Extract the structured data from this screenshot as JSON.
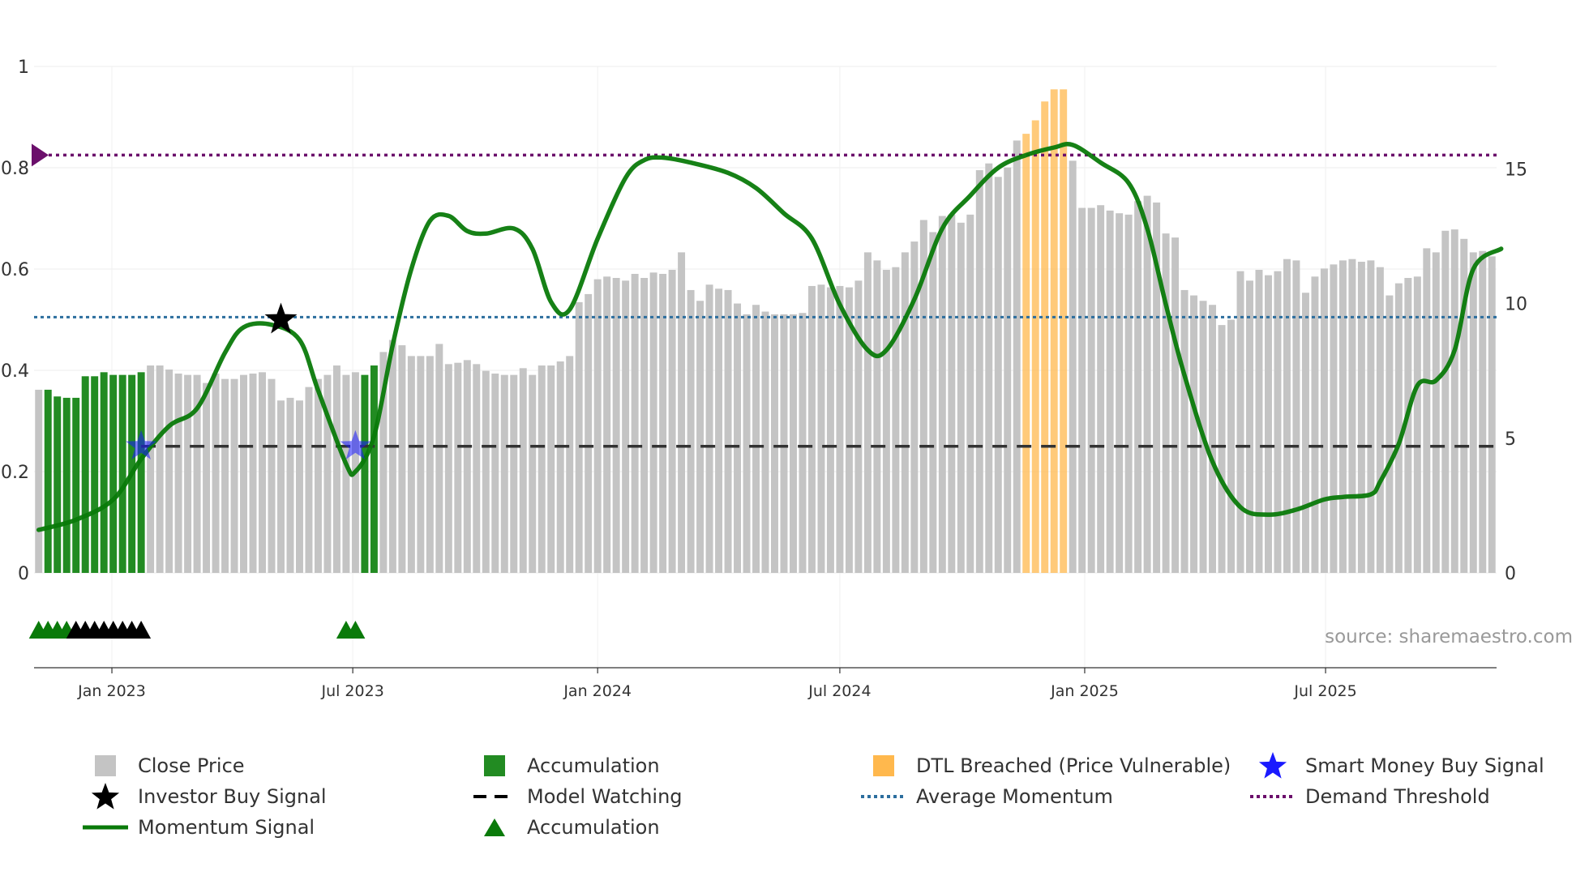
{
  "source_text": "source: sharemaestro.com",
  "colors": {
    "close": "#c4c4c4",
    "accumulation": "#228b22",
    "dtl": "#ffb84d",
    "momentum": "#0a7a0a",
    "average": "#2c6e9e",
    "demand": "#6b0f6b",
    "watch": "#333333",
    "smart": "#1a1aff",
    "investor": "#000000"
  },
  "legend": [
    {
      "key": "close",
      "label": "Close Price",
      "symbol": "square"
    },
    {
      "key": "accumulation",
      "label": "Accumulation",
      "symbol": "square"
    },
    {
      "key": "dtl",
      "label": "DTL Breached (Price Vulnerable)",
      "symbol": "square"
    },
    {
      "key": "smart",
      "label": "Smart Money Buy Signal",
      "symbol": "star"
    },
    {
      "key": "investor",
      "label": "Investor Buy Signal",
      "symbol": "star"
    },
    {
      "key": "watch",
      "label": "Model Watching",
      "symbol": "dash"
    },
    {
      "key": "average",
      "label": "Average Momentum",
      "symbol": "dot"
    },
    {
      "key": "demand",
      "label": "Demand Threshold",
      "symbol": "dotpurple"
    },
    {
      "key": "momentum",
      "label": "Momentum Signal",
      "symbol": "line"
    },
    {
      "key": "accum_marker",
      "label": "Accumulation",
      "symbol": "triangle"
    }
  ],
  "chart_data": {
    "type": "bar",
    "title": "",
    "x_start": "2022-11-07",
    "x_step_days": 7,
    "x_ticks": [
      "Jan 2023",
      "Jul 2023",
      "Jan 2024",
      "Jul 2024",
      "Jan 2025",
      "Jul 2025"
    ],
    "x_tick_dates": [
      "2023-01-01",
      "2023-07-01",
      "2024-01-01",
      "2024-07-01",
      "2025-01-01",
      "2025-07-01"
    ],
    "y_left": {
      "label": "",
      "ylim": [
        0,
        1
      ],
      "ticks": [
        "0",
        "0.2",
        "0.4",
        "0.6",
        "0.8",
        "1"
      ],
      "tick_values": [
        0,
        0.2,
        0.4,
        0.6,
        0.8,
        1
      ]
    },
    "y_right": {
      "label": "",
      "ylim": [
        0,
        18.8
      ],
      "ticks": [
        "0",
        "5",
        "10",
        "15"
      ],
      "tick_values": [
        0,
        5,
        10,
        15
      ]
    },
    "close_price": [
      6.8,
      6.8,
      6.55,
      6.5,
      6.5,
      7.3,
      7.3,
      7.45,
      7.35,
      7.35,
      7.35,
      7.45,
      7.7,
      7.7,
      7.55,
      7.4,
      7.35,
      7.35,
      7.05,
      7.4,
      7.2,
      7.2,
      7.35,
      7.4,
      7.45,
      7.2,
      6.4,
      6.5,
      6.4,
      6.9,
      7.2,
      7.35,
      7.7,
      7.35,
      7.45,
      7.35,
      7.7,
      8.2,
      8.65,
      8.45,
      8.05,
      8.05,
      8.05,
      8.5,
      7.75,
      7.8,
      7.9,
      7.75,
      7.5,
      7.4,
      7.35,
      7.35,
      7.6,
      7.35,
      7.7,
      7.7,
      7.85,
      8.05,
      10.05,
      10.35,
      10.9,
      11.0,
      10.95,
      10.85,
      11.1,
      10.95,
      11.15,
      11.1,
      11.25,
      11.9,
      10.5,
      10.1,
      10.7,
      10.55,
      10.5,
      10.0,
      9.6,
      9.95,
      9.7,
      9.6,
      9.6,
      9.6,
      9.65,
      10.65,
      10.7,
      10.6,
      10.65,
      10.6,
      10.85,
      11.9,
      11.6,
      11.25,
      11.35,
      11.9,
      12.3,
      13.1,
      12.65,
      13.25,
      13.3,
      13.0,
      13.3,
      14.95,
      15.2,
      14.7,
      15.05,
      16.05,
      16.3,
      16.8,
      17.5,
      17.95,
      17.95,
      15.3,
      13.55,
      13.55,
      13.65,
      13.45,
      13.35,
      13.3,
      13.8,
      14.0,
      13.75,
      12.6,
      12.45,
      10.5,
      10.3,
      10.1,
      9.95,
      9.2,
      9.4,
      11.2,
      10.85,
      11.25,
      11.05,
      11.2,
      11.65,
      11.6,
      10.4,
      11.0,
      11.3,
      11.45,
      11.6,
      11.65,
      11.55,
      11.6,
      11.35,
      10.3,
      10.75,
      10.95,
      11.0,
      12.05,
      11.9,
      12.7,
      12.75,
      12.4,
      11.9,
      11.95,
      11.75
    ],
    "zone": [
      "n",
      "a",
      "a",
      "a",
      "a",
      "a",
      "a",
      "a",
      "a",
      "a",
      "a",
      "a",
      "n",
      "n",
      "n",
      "n",
      "n",
      "n",
      "n",
      "n",
      "n",
      "n",
      "n",
      "n",
      "n",
      "n",
      "n",
      "n",
      "n",
      "n",
      "n",
      "n",
      "n",
      "n",
      "n",
      "a",
      "a",
      "n",
      "n",
      "n",
      "n",
      "n",
      "n",
      "n",
      "n",
      "n",
      "n",
      "n",
      "n",
      "n",
      "n",
      "n",
      "n",
      "n",
      "n",
      "n",
      "n",
      "n",
      "n",
      "n",
      "n",
      "n",
      "n",
      "n",
      "n",
      "n",
      "n",
      "n",
      "n",
      "n",
      "n",
      "n",
      "n",
      "n",
      "n",
      "n",
      "n",
      "n",
      "n",
      "n",
      "n",
      "n",
      "n",
      "n",
      "n",
      "n",
      "n",
      "n",
      "n",
      "n",
      "n",
      "n",
      "n",
      "n",
      "n",
      "n",
      "n",
      "n",
      "n",
      "n",
      "n",
      "n",
      "n",
      "n",
      "n",
      "n",
      "d",
      "d",
      "d",
      "d",
      "d",
      "n",
      "n",
      "n",
      "n",
      "n",
      "n",
      "n",
      "n",
      "n",
      "n",
      "n",
      "n",
      "n",
      "n",
      "n",
      "n",
      "n",
      "n",
      "n",
      "n",
      "n",
      "n",
      "n",
      "n",
      "n",
      "n",
      "n",
      "n",
      "n",
      "n",
      "n",
      "n",
      "n",
      "n",
      "n",
      "n",
      "n",
      "n",
      "n",
      "n",
      "n",
      "n",
      "n",
      "n",
      "n",
      "n",
      "n",
      "n",
      "n",
      "n"
    ],
    "momentum_signal": [
      [
        "2022-11-07",
        0.085
      ],
      [
        "2022-12-05",
        0.105
      ],
      [
        "2023-01-02",
        0.145
      ],
      [
        "2023-01-23",
        0.225
      ],
      [
        "2023-02-13",
        0.29
      ],
      [
        "2023-03-06",
        0.325
      ],
      [
        "2023-03-27",
        0.435
      ],
      [
        "2023-04-10",
        0.485
      ],
      [
        "2023-05-01",
        0.49
      ],
      [
        "2023-05-22",
        0.46
      ],
      [
        "2023-06-05",
        0.36
      ],
      [
        "2023-06-26",
        0.215
      ],
      [
        "2023-07-03",
        0.2
      ],
      [
        "2023-07-17",
        0.27
      ],
      [
        "2023-07-31",
        0.45
      ],
      [
        "2023-08-14",
        0.6
      ],
      [
        "2023-08-28",
        0.695
      ],
      [
        "2023-09-11",
        0.705
      ],
      [
        "2023-09-25",
        0.675
      ],
      [
        "2023-10-09",
        0.67
      ],
      [
        "2023-10-30",
        0.68
      ],
      [
        "2023-11-13",
        0.64
      ],
      [
        "2023-11-27",
        0.535
      ],
      [
        "2023-12-11",
        0.52
      ],
      [
        "2024-01-01",
        0.66
      ],
      [
        "2024-01-22",
        0.78
      ],
      [
        "2024-02-05",
        0.815
      ],
      [
        "2024-02-19",
        0.82
      ],
      [
        "2024-03-11",
        0.81
      ],
      [
        "2024-04-08",
        0.79
      ],
      [
        "2024-04-29",
        0.76
      ],
      [
        "2024-05-20",
        0.71
      ],
      [
        "2024-06-10",
        0.66
      ],
      [
        "2024-07-01",
        0.53
      ],
      [
        "2024-07-22",
        0.44
      ],
      [
        "2024-08-05",
        0.44
      ],
      [
        "2024-08-26",
        0.54
      ],
      [
        "2024-09-16",
        0.68
      ],
      [
        "2024-10-07",
        0.745
      ],
      [
        "2024-10-28",
        0.8
      ],
      [
        "2024-11-18",
        0.825
      ],
      [
        "2024-12-09",
        0.84
      ],
      [
        "2024-12-23",
        0.845
      ],
      [
        "2025-01-13",
        0.81
      ],
      [
        "2025-02-03",
        0.77
      ],
      [
        "2025-02-17",
        0.68
      ],
      [
        "2025-03-03",
        0.53
      ],
      [
        "2025-03-17",
        0.39
      ],
      [
        "2025-04-07",
        0.22
      ],
      [
        "2025-04-28",
        0.13
      ],
      [
        "2025-05-19",
        0.115
      ],
      [
        "2025-06-09",
        0.125
      ],
      [
        "2025-06-30",
        0.145
      ],
      [
        "2025-07-14",
        0.15
      ],
      [
        "2025-08-04",
        0.155
      ],
      [
        "2025-08-11",
        0.18
      ],
      [
        "2025-08-25",
        0.255
      ],
      [
        "2025-09-08",
        0.37
      ],
      [
        "2025-09-22",
        0.38
      ],
      [
        "2025-10-06",
        0.44
      ],
      [
        "2025-10-20",
        0.6
      ],
      [
        "2025-11-10",
        0.64
      ]
    ],
    "average_momentum": 0.505,
    "demand_threshold": 0.825,
    "model_watching": {
      "level": 0.25,
      "from": "2023-01-23",
      "to": "2025-11-10"
    },
    "investor_buy_signals": [
      {
        "date": "2023-05-08",
        "value": 0.5
      }
    ],
    "smart_money_buy_signals": [
      {
        "date": "2023-01-23",
        "value": 0.25
      },
      {
        "date": "2023-07-03",
        "value": 0.25
      }
    ],
    "accumulation_markers": [
      {
        "date": "2022-11-07",
        "color": "green"
      },
      {
        "date": "2022-11-14",
        "color": "green"
      },
      {
        "date": "2022-11-21",
        "color": "green"
      },
      {
        "date": "2022-11-28",
        "color": "green"
      },
      {
        "date": "2022-12-05",
        "color": "black"
      },
      {
        "date": "2022-12-12",
        "color": "black"
      },
      {
        "date": "2022-12-19",
        "color": "black"
      },
      {
        "date": "2022-12-26",
        "color": "black"
      },
      {
        "date": "2023-01-02",
        "color": "black"
      },
      {
        "date": "2023-01-09",
        "color": "black"
      },
      {
        "date": "2023-01-16",
        "color": "black"
      },
      {
        "date": "2023-01-23",
        "color": "black"
      },
      {
        "date": "2023-06-26",
        "color": "green"
      },
      {
        "date": "2023-07-03",
        "color": "green"
      }
    ]
  }
}
